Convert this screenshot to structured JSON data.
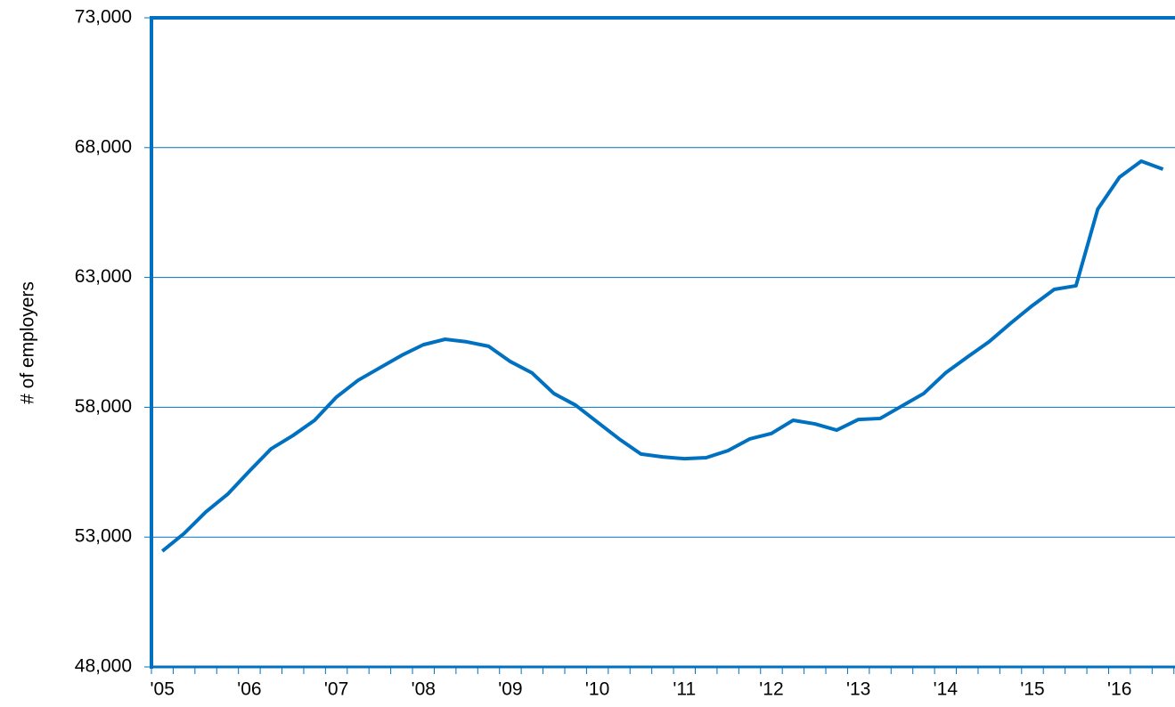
{
  "chart_data": {
    "type": "line",
    "y_axis_label": "# of employers",
    "categories": [
      "'05",
      null,
      null,
      null,
      "'06",
      null,
      null,
      null,
      "'07",
      null,
      null,
      null,
      "'08",
      null,
      null,
      null,
      "'09",
      null,
      null,
      null,
      "'10",
      null,
      null,
      null,
      "'11",
      null,
      null,
      null,
      "'12",
      null,
      null,
      null,
      "'13",
      null,
      null,
      null,
      "'14",
      null,
      null,
      null,
      "'15",
      null,
      null,
      null,
      "'16",
      null,
      null
    ],
    "series": [
      {
        "color": "#0070c0",
        "values": [
          52460,
          53140,
          53970,
          54650,
          55540,
          56400,
          56910,
          57500,
          58390,
          59040,
          59520,
          60000,
          60410,
          60620,
          60520,
          60350,
          59760,
          59320,
          58530,
          58080,
          57430,
          56780,
          56200,
          56090,
          56020,
          56060,
          56330,
          56780,
          56990,
          57500,
          57360,
          57120,
          57530,
          57570,
          58050,
          58530,
          59320,
          59930,
          60520,
          61240,
          61920,
          62540,
          62680,
          65630,
          66860,
          67480,
          67170
        ]
      }
    ],
    "ylim": [
      48000,
      73000
    ],
    "yticks": [
      {
        "value": 48000,
        "label": "48,000"
      },
      {
        "value": 53000,
        "label": "53,000"
      },
      {
        "value": 58000,
        "label": "58,000"
      },
      {
        "value": 63000,
        "label": "63,000"
      },
      {
        "value": 68000,
        "label": "68,000"
      },
      {
        "value": 73000,
        "label": "73,000"
      }
    ],
    "grid": true
  }
}
